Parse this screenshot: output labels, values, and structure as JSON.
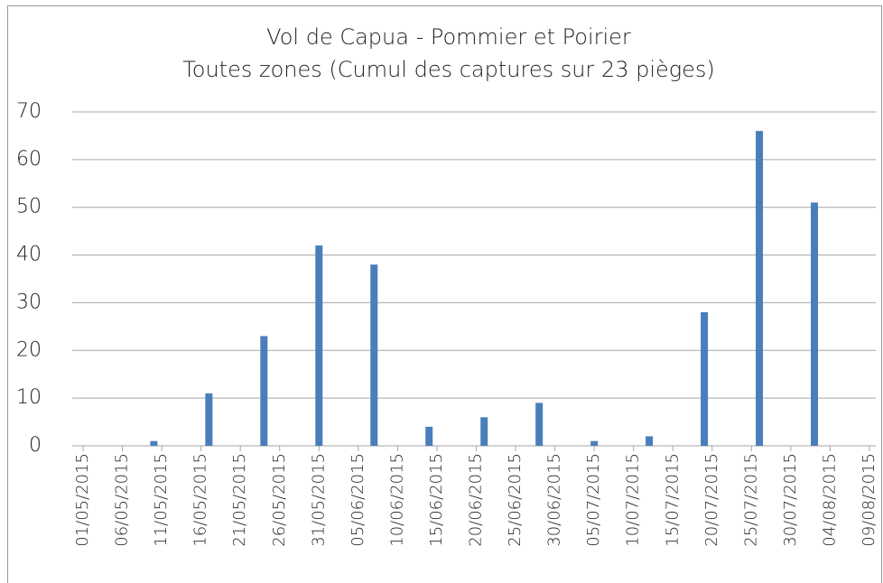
{
  "chart_data": {
    "type": "bar",
    "title": "Vol de Capua - Pommier et Poirier",
    "subtitle": "Toutes zones (Cumul des captures sur 23 pièges)",
    "x": [
      "10/05/2015",
      "17/05/2015",
      "24/05/2015",
      "31/05/2015",
      "07/06/2015",
      "14/06/2015",
      "21/06/2015",
      "28/06/2015",
      "05/07/2015",
      "12/07/2015",
      "19/07/2015",
      "26/07/2015",
      "02/08/2015"
    ],
    "values": [
      1,
      11,
      23,
      42,
      38,
      4,
      6,
      9,
      1,
      2,
      28,
      66,
      51
    ],
    "color": "#4a7ebb",
    "xlim": [
      "01/05/2015",
      "09/08/2015"
    ],
    "xticks": [
      "01/05/2015",
      "06/05/2015",
      "11/05/2015",
      "16/05/2015",
      "21/05/2015",
      "26/05/2015",
      "31/05/2015",
      "05/06/2015",
      "10/06/2015",
      "15/06/2015",
      "20/06/2015",
      "25/06/2015",
      "30/06/2015",
      "05/07/2015",
      "10/07/2015",
      "15/07/2015",
      "20/07/2015",
      "25/07/2015",
      "30/07/2015",
      "04/08/2015",
      "09/08/2015"
    ],
    "ylim": [
      0,
      70
    ],
    "yticks": [
      0,
      10,
      20,
      30,
      40,
      50,
      60,
      70
    ],
    "grid": true
  }
}
